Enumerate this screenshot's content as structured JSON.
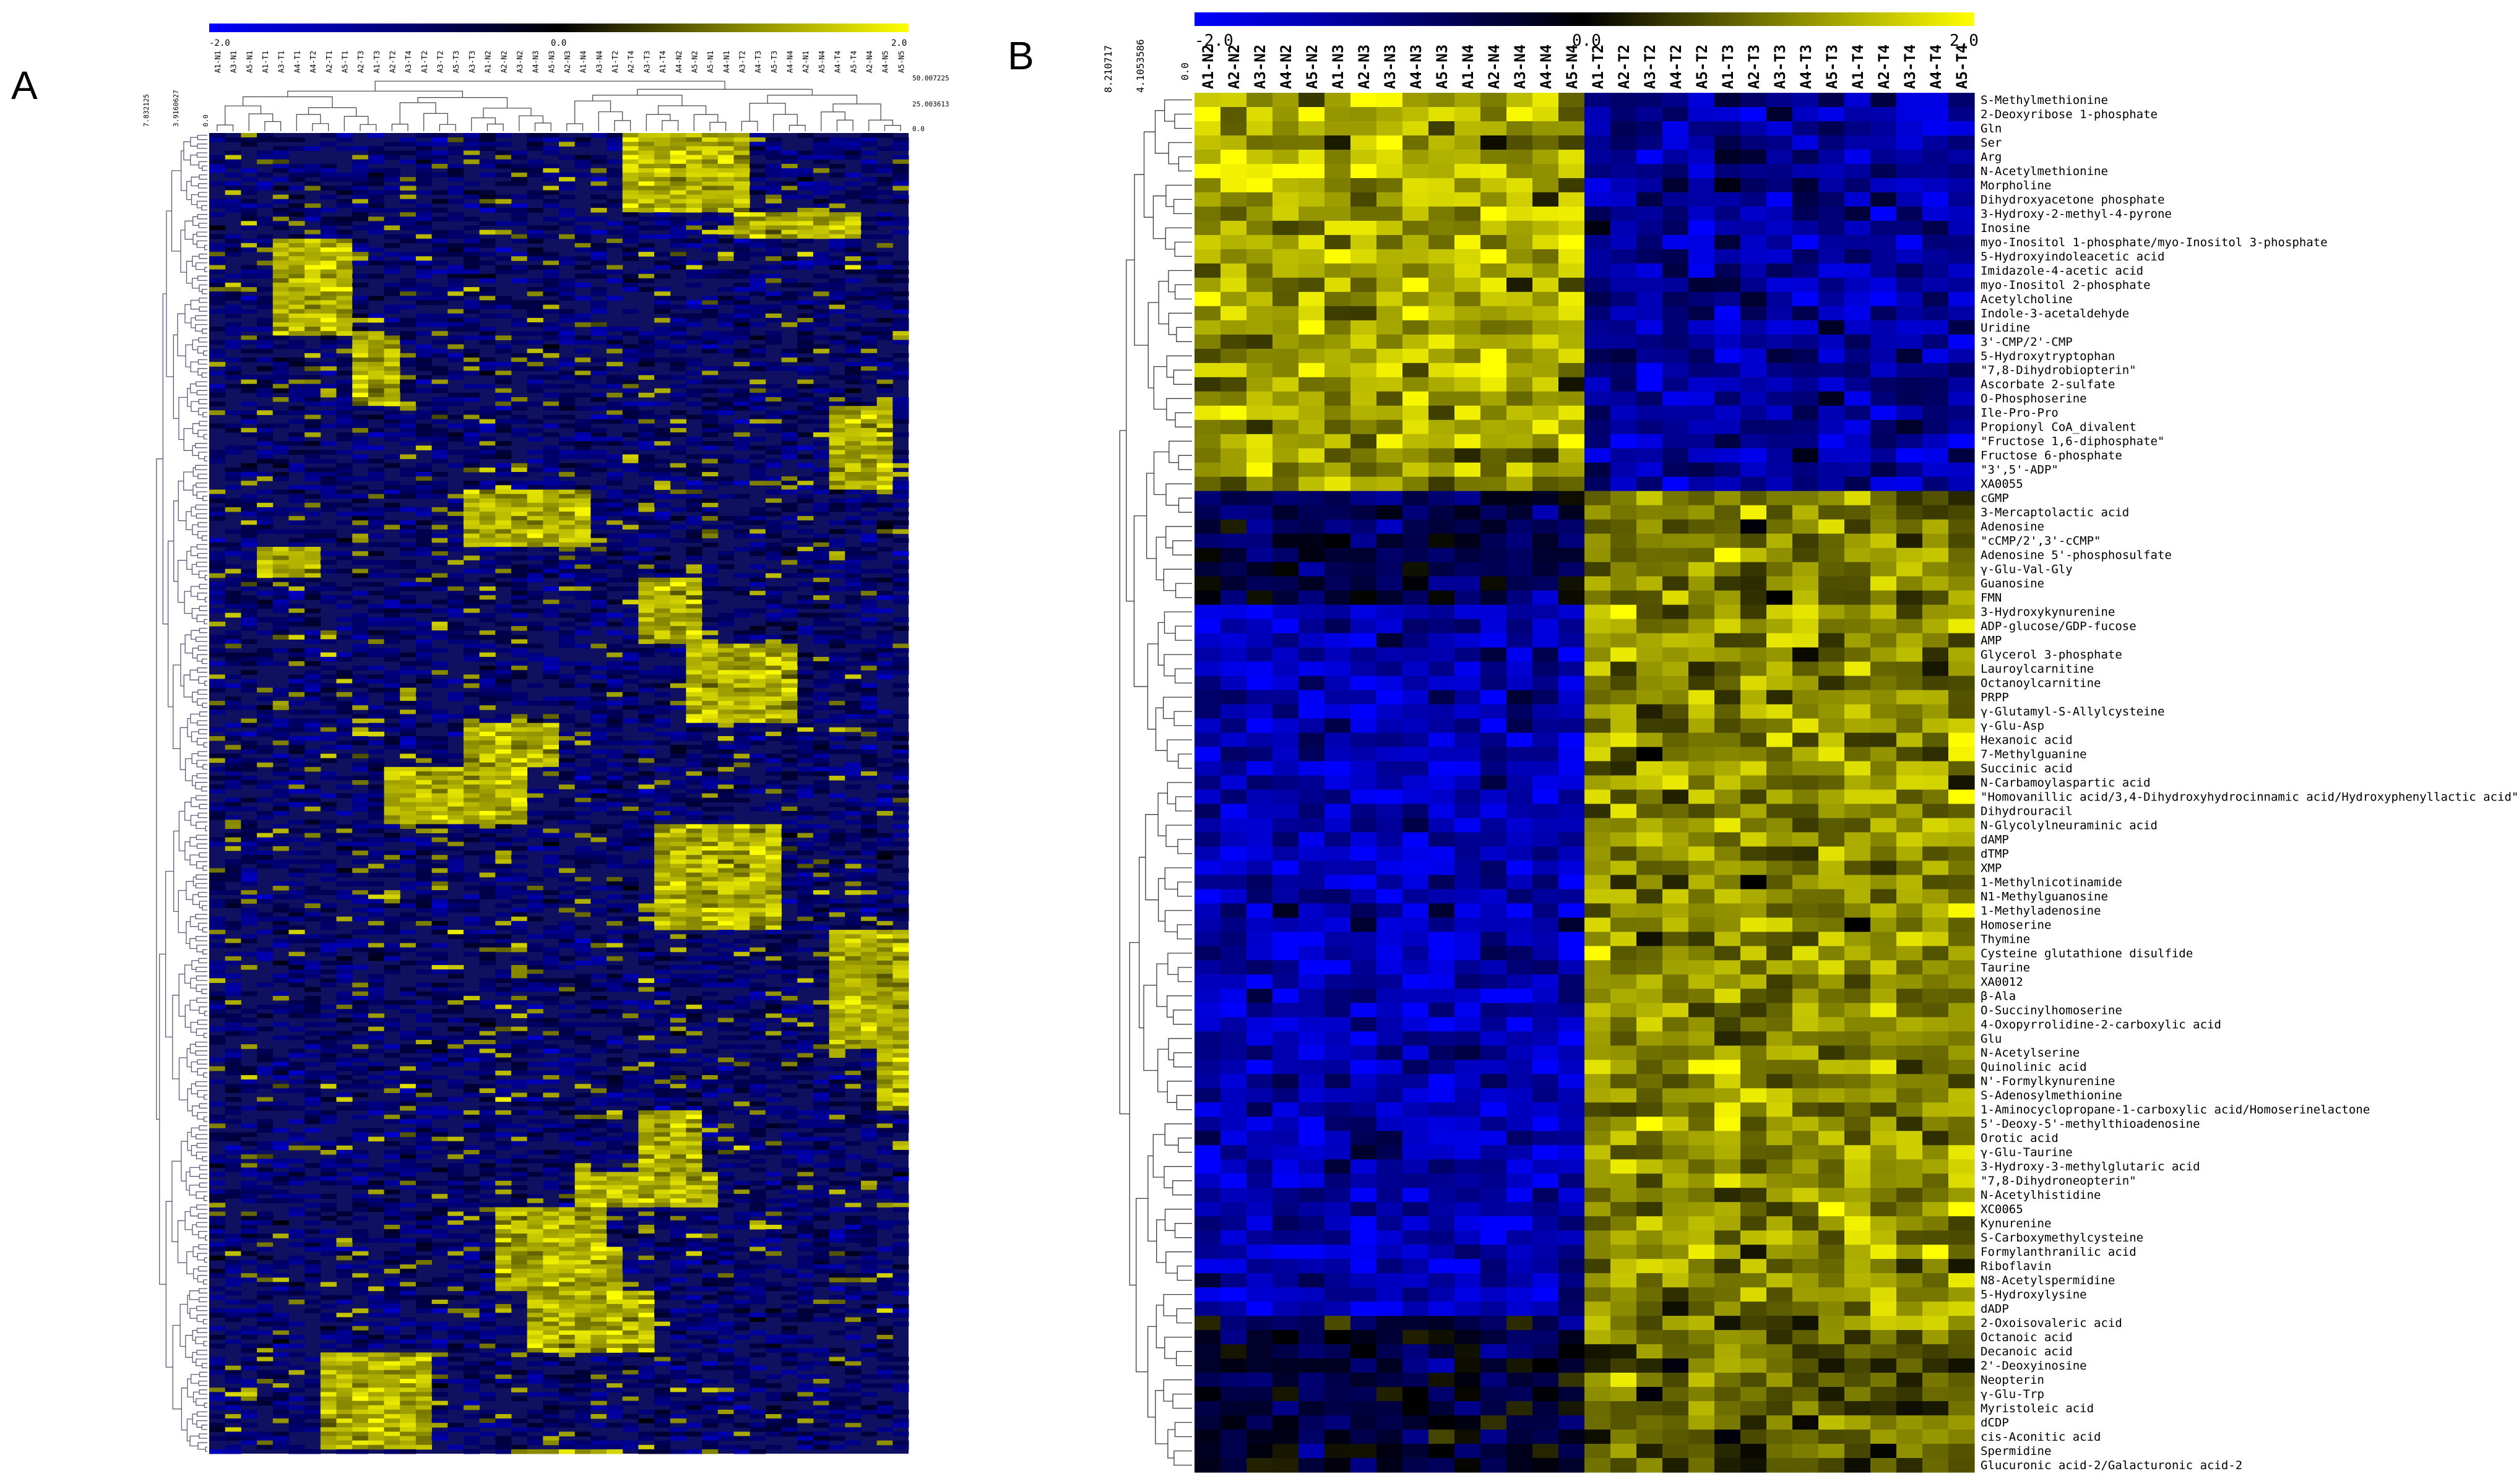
{
  "panels": [
    {
      "label": "A",
      "colorbar": {
        "min": "-2.0",
        "mid": "0.0",
        "max": "2.0"
      },
      "col_dendro_scale": [
        "50.007225",
        "25.003613",
        "0.0"
      ],
      "row_dendro_scale": [
        "7.832125",
        "3.9160627",
        "0.0"
      ],
      "columns": [
        "A1-N1",
        "A3-N1",
        "A5-N1",
        "A1-T1",
        "A3-T1",
        "A4-T1",
        "A4-T2",
        "A2-T1",
        "A5-T1",
        "A2-T3",
        "A1-T3",
        "A2-T2",
        "A3-T4",
        "A1-T2",
        "A3-T2",
        "A5-T3",
        "A3-T3",
        "A1-N2",
        "A2-N2",
        "A3-N2",
        "A4-N3",
        "A5-N3",
        "A2-N3",
        "A1-N4",
        "A3-N4",
        "A1-T2",
        "A2-T4",
        "A3-T3",
        "A1-T4",
        "A4-N2",
        "A5-N2",
        "A5-N1",
        "A4-N1",
        "A3-T2",
        "A4-T3",
        "A5-T3",
        "A4-N4",
        "A2-N1",
        "A5-N4",
        "A4-T4",
        "A5-T4",
        "A2-N4",
        "A4-N5",
        "A5-N5"
      ]
    },
    {
      "label": "B",
      "colorbar": {
        "min": "-2.0",
        "mid": "0.0",
        "max": "2.0"
      },
      "col_dendro_scale": [
        "8.210717",
        "4.1053586",
        "0.0"
      ],
      "columns": [
        "A1-N2",
        "A2-N2",
        "A3-N2",
        "A4-N2",
        "A5-N2",
        "A1-N3",
        "A2-N3",
        "A3-N3",
        "A4-N3",
        "A5-N3",
        "A1-N4",
        "A2-N4",
        "A3-N4",
        "A4-N4",
        "A5-N4",
        "A1-T2",
        "A2-T2",
        "A3-T2",
        "A4-T2",
        "A5-T2",
        "A1-T3",
        "A2-T3",
        "A3-T3",
        "A4-T3",
        "A5-T3",
        "A1-T4",
        "A2-T4",
        "A3-T4",
        "A4-T4",
        "A5-T4"
      ],
      "rows": [
        "S-Methylmethionine",
        "2-Deoxyribose 1-phosphate",
        "Gln",
        "Ser",
        "Arg",
        "N-Acetylmethionine",
        "Morpholine",
        "Dihydroxyacetone phosphate",
        "3-Hydroxy-2-methyl-4-pyrone",
        "Inosine",
        "myo-Inositol 1-phosphate/myo-Inositol 3-phosphate",
        "5-Hydroxyindoleacetic acid",
        "Imidazole-4-acetic acid",
        "myo-Inositol 2-phosphate",
        "Acetylcholine",
        "Indole-3-acetaldehyde",
        "Uridine",
        "3'-CMP/2'-CMP",
        "5-Hydroxytryptophan",
        "\"7,8-Dihydrobiopterin\"",
        "Ascorbate 2-sulfate",
        "O-Phosphoserine",
        "Ile-Pro-Pro",
        "Propionyl CoA_divalent",
        "\"Fructose 1,6-diphosphate\"",
        "Fructose 6-phosphate",
        "\"3',5'-ADP\"",
        "XA0055",
        "cGMP",
        "3-Mercaptolactic acid",
        "Adenosine",
        "\"cCMP/2',3'-cCMP\"",
        "Adenosine 5'-phosphosulfate",
        "γ-Glu-Val-Gly",
        "Guanosine",
        "FMN",
        "3-Hydroxykynurenine",
        "ADP-glucose/GDP-fucose",
        "AMP",
        "Glycerol 3-phosphate",
        "Lauroylcarnitine",
        "Octanoylcarnitine",
        "PRPP",
        "γ-Glutamyl-S-Allylcysteine",
        "γ-Glu-Asp",
        "Hexanoic acid",
        "7-Methylguanine",
        "Succinic acid",
        "N-Carbamoylaspartic acid",
        "\"Homovanillic acid/3,4-Dihydroxyhydrocinnamic acid/Hydroxyphenyllactic acid\"",
        "Dihydrouracil",
        "N-Glycolylneuraminic acid",
        "dAMP",
        "dTMP",
        "XMP",
        "1-Methylnicotinamide",
        "N1-Methylguanosine",
        "1-Methyladenosine",
        "Homoserine",
        "Thymine",
        "Cysteine glutathione disulfide",
        "Taurine",
        "XA0012",
        "β-Ala",
        "O-Succinylhomoserine",
        "4-Oxopyrrolidine-2-carboxylic acid",
        "Glu",
        "N-Acetylserine",
        "Quinolinic acid",
        "N'-Formylkynurenine",
        "S-Adenosylmethionine",
        "1-Aminocyclopropane-1-carboxylic acid/Homoserinelactone",
        "5'-Deoxy-5'-methylthioadenosine",
        "Orotic acid",
        "γ-Glu-Taurine",
        "3-Hydroxy-3-methylglutaric acid",
        "\"7,8-Dihydroneopterin\"",
        "N-Acetylhistidine",
        "XC0065",
        "Kynurenine",
        "S-Carboxymethylcysteine",
        "Formylanthranilic acid",
        "Riboflavin",
        "N8-Acetylspermidine",
        "5-Hydroxylysine",
        "dADP",
        "2-Oxoisovaleric acid",
        "Octanoic acid",
        "Decanoic acid",
        "2'-Deoxyinosine",
        "Neopterin",
        "γ-Glu-Trp",
        "Myristoleic acid",
        "dCDP",
        "cis-Aconitic acid",
        "Spermidine",
        "Glucuronic acid-2/Galacturonic acid-2"
      ]
    }
  ],
  "chart_data": [
    {
      "type": "heatmap",
      "title": "",
      "panel": "A",
      "color_scale": {
        "min": -2.0,
        "mid": 0.0,
        "max": 2.0,
        "colors": [
          "#0000ff",
          "#000000",
          "#ffff00"
        ]
      },
      "n_columns": 44,
      "n_rows_approx": 900,
      "values": "Approximate pattern only: blocks of high (yellow) values along column groups; dense hierarchical clustering of many metabolite features. Individual cell values are not legible at this resolution."
    },
    {
      "type": "heatmap",
      "title": "",
      "panel": "B",
      "color_scale": {
        "min": -2.0,
        "mid": 0.0,
        "max": 2.0,
        "colors": [
          "#0000ff",
          "#000000",
          "#ffff00"
        ]
      },
      "block_summary": [
        {
          "row_range": [
            0,
            27
          ],
          "N_columns": 1.3,
          "T_columns": -1.2
        },
        {
          "row_range": [
            28,
            35
          ],
          "N_columns": -0.6,
          "T_columns": 0.9
        },
        {
          "row_range": [
            36,
            85
          ],
          "N_columns": -1.4,
          "T_columns": 1.1
        },
        {
          "row_range": [
            86,
            96
          ],
          "N_columns": -0.4,
          "T_columns": 0.8
        }
      ]
    }
  ]
}
